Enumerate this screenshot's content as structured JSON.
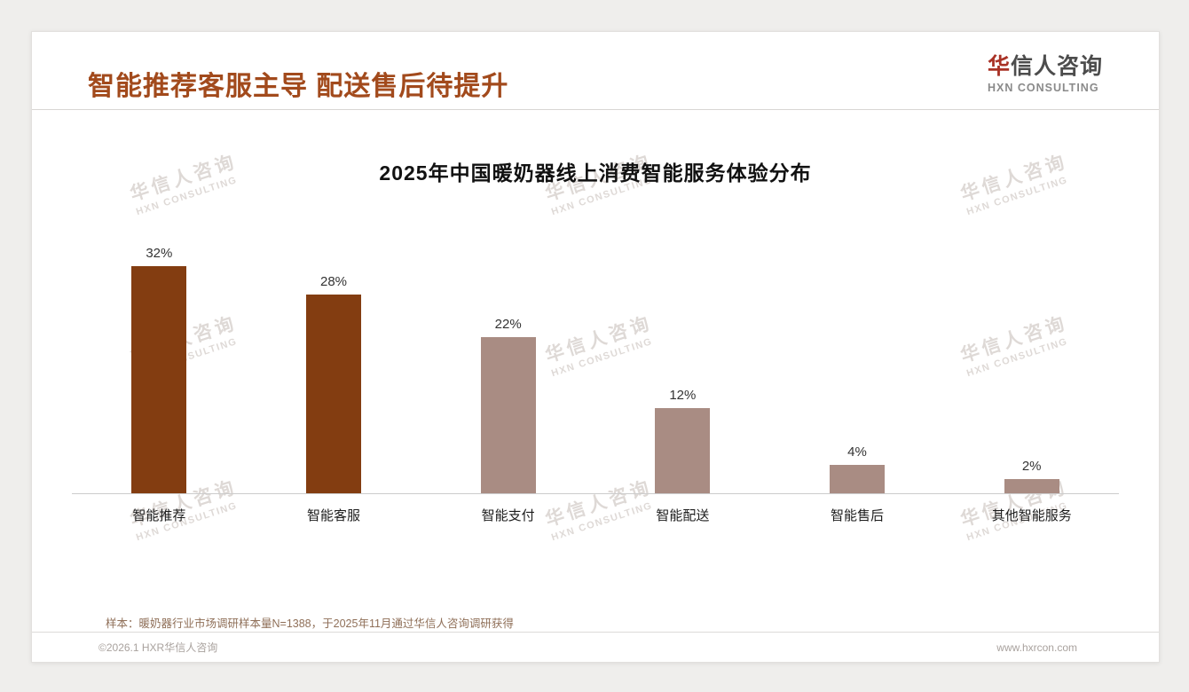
{
  "header": {
    "title": "智能推荐客服主导 配送售后待提升",
    "logo": {
      "cn_first": "华",
      "cn_rest": "信人咨询",
      "en": "HXN CONSULTING"
    }
  },
  "chart_data": {
    "type": "bar",
    "title": "2025年中国暖奶器线上消费智能服务体验分布",
    "categories": [
      "智能推荐",
      "智能客服",
      "智能支付",
      "智能配送",
      "智能售后",
      "其他智能服务"
    ],
    "values": [
      32,
      28,
      22,
      12,
      4,
      2
    ],
    "value_labels": [
      "32%",
      "28%",
      "22%",
      "12%",
      "4%",
      "2%"
    ],
    "xlabel": "",
    "ylabel": "",
    "ylim": [
      0,
      35
    ],
    "grid": false,
    "legend": "none",
    "bar_colors": [
      "#833d11",
      "#833d11",
      "#a98c83",
      "#a98c83",
      "#a98c83",
      "#a98c83"
    ],
    "accent_dark": "#833d11",
    "accent_light": "#a98c83"
  },
  "watermark": {
    "line1": "华信人咨询",
    "line2": "HXN CONSULTING"
  },
  "note": "样本：暖奶器行业市场调研样本量N=1388，于2025年11月通过华信人咨询调研获得",
  "footer": {
    "copyright": "©2026.1 HXR华信人咨询",
    "website": "www.hxrcon.com"
  }
}
